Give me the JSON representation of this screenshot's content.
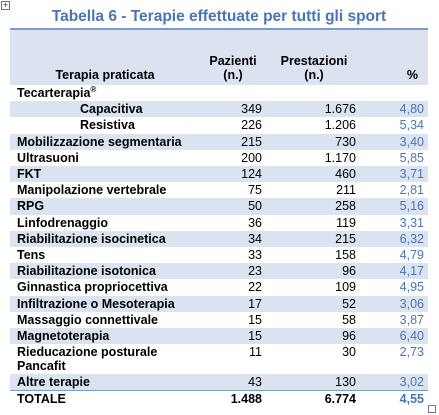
{
  "title": "Tabella 6 - Terapie effettuate per tutti gli sport",
  "header": {
    "therapy": "Terapia praticata",
    "patients_line1": "Pazienti",
    "patients_line2": "(n.)",
    "services_line1": "Prestazioni",
    "services_line2": "(n.)",
    "percent": "%"
  },
  "group": {
    "label": "Tecarterapia",
    "mark": "®"
  },
  "rows": [
    {
      "name": "Capacitiva",
      "patients": "349",
      "services": "1.676",
      "pct": "4,80"
    },
    {
      "name": "Resistiva",
      "patients": "226",
      "services": "1.206",
      "pct": "5,34"
    },
    {
      "name": "Mobilizzazione segmentaria",
      "patients": "215",
      "services": "730",
      "pct": "3,40"
    },
    {
      "name": "Ultrasuoni",
      "patients": "200",
      "services": "1.170",
      "pct": "5,85"
    },
    {
      "name": "FKT",
      "patients": "124",
      "services": "460",
      "pct": "3,71"
    },
    {
      "name": "Manipolazione vertebrale",
      "patients": "75",
      "services": "211",
      "pct": "2,81"
    },
    {
      "name": "RPG",
      "patients": "50",
      "services": "258",
      "pct": "5,16"
    },
    {
      "name": "Linfodrenaggio",
      "patients": "36",
      "services": "119",
      "pct": "3,31"
    },
    {
      "name": "Riabilitazione isocinetica",
      "patients": "34",
      "services": "215",
      "pct": "6,32"
    },
    {
      "name": "Tens",
      "patients": "33",
      "services": "158",
      "pct": "4,79"
    },
    {
      "name": "Riabilitazione isotonica",
      "patients": "23",
      "services": "96",
      "pct": "4,17"
    },
    {
      "name": "Ginnastica propriocettiva",
      "patients": "22",
      "services": "109",
      "pct": "4,95"
    },
    {
      "name": "Infiltrazione o Mesoterapia",
      "patients": "17",
      "services": "52",
      "pct": "3,06"
    },
    {
      "name": "Massaggio connettivale",
      "patients": "15",
      "services": "58",
      "pct": "3,87"
    },
    {
      "name": "Magnetoterapia",
      "patients": "15",
      "services": "96",
      "pct": "6,40"
    },
    {
      "name": "Rieducazione posturale",
      "name2": "Pancafit",
      "patients": "11",
      "services": "30",
      "pct": "2,73"
    },
    {
      "name": "Altre terapie",
      "patients": "43",
      "services": "130",
      "pct": "3,02"
    }
  ],
  "total": {
    "name": "TOTALE",
    "patients": "1.488",
    "services": "6.774",
    "pct": "4,55"
  },
  "colors": {
    "accent": "#4a75b4",
    "band": "#dbe3f1",
    "rule": "#7b9bc9"
  },
  "icons": {
    "move_handle": "move-handle-icon",
    "resize_handle": "resize-handle-icon"
  }
}
